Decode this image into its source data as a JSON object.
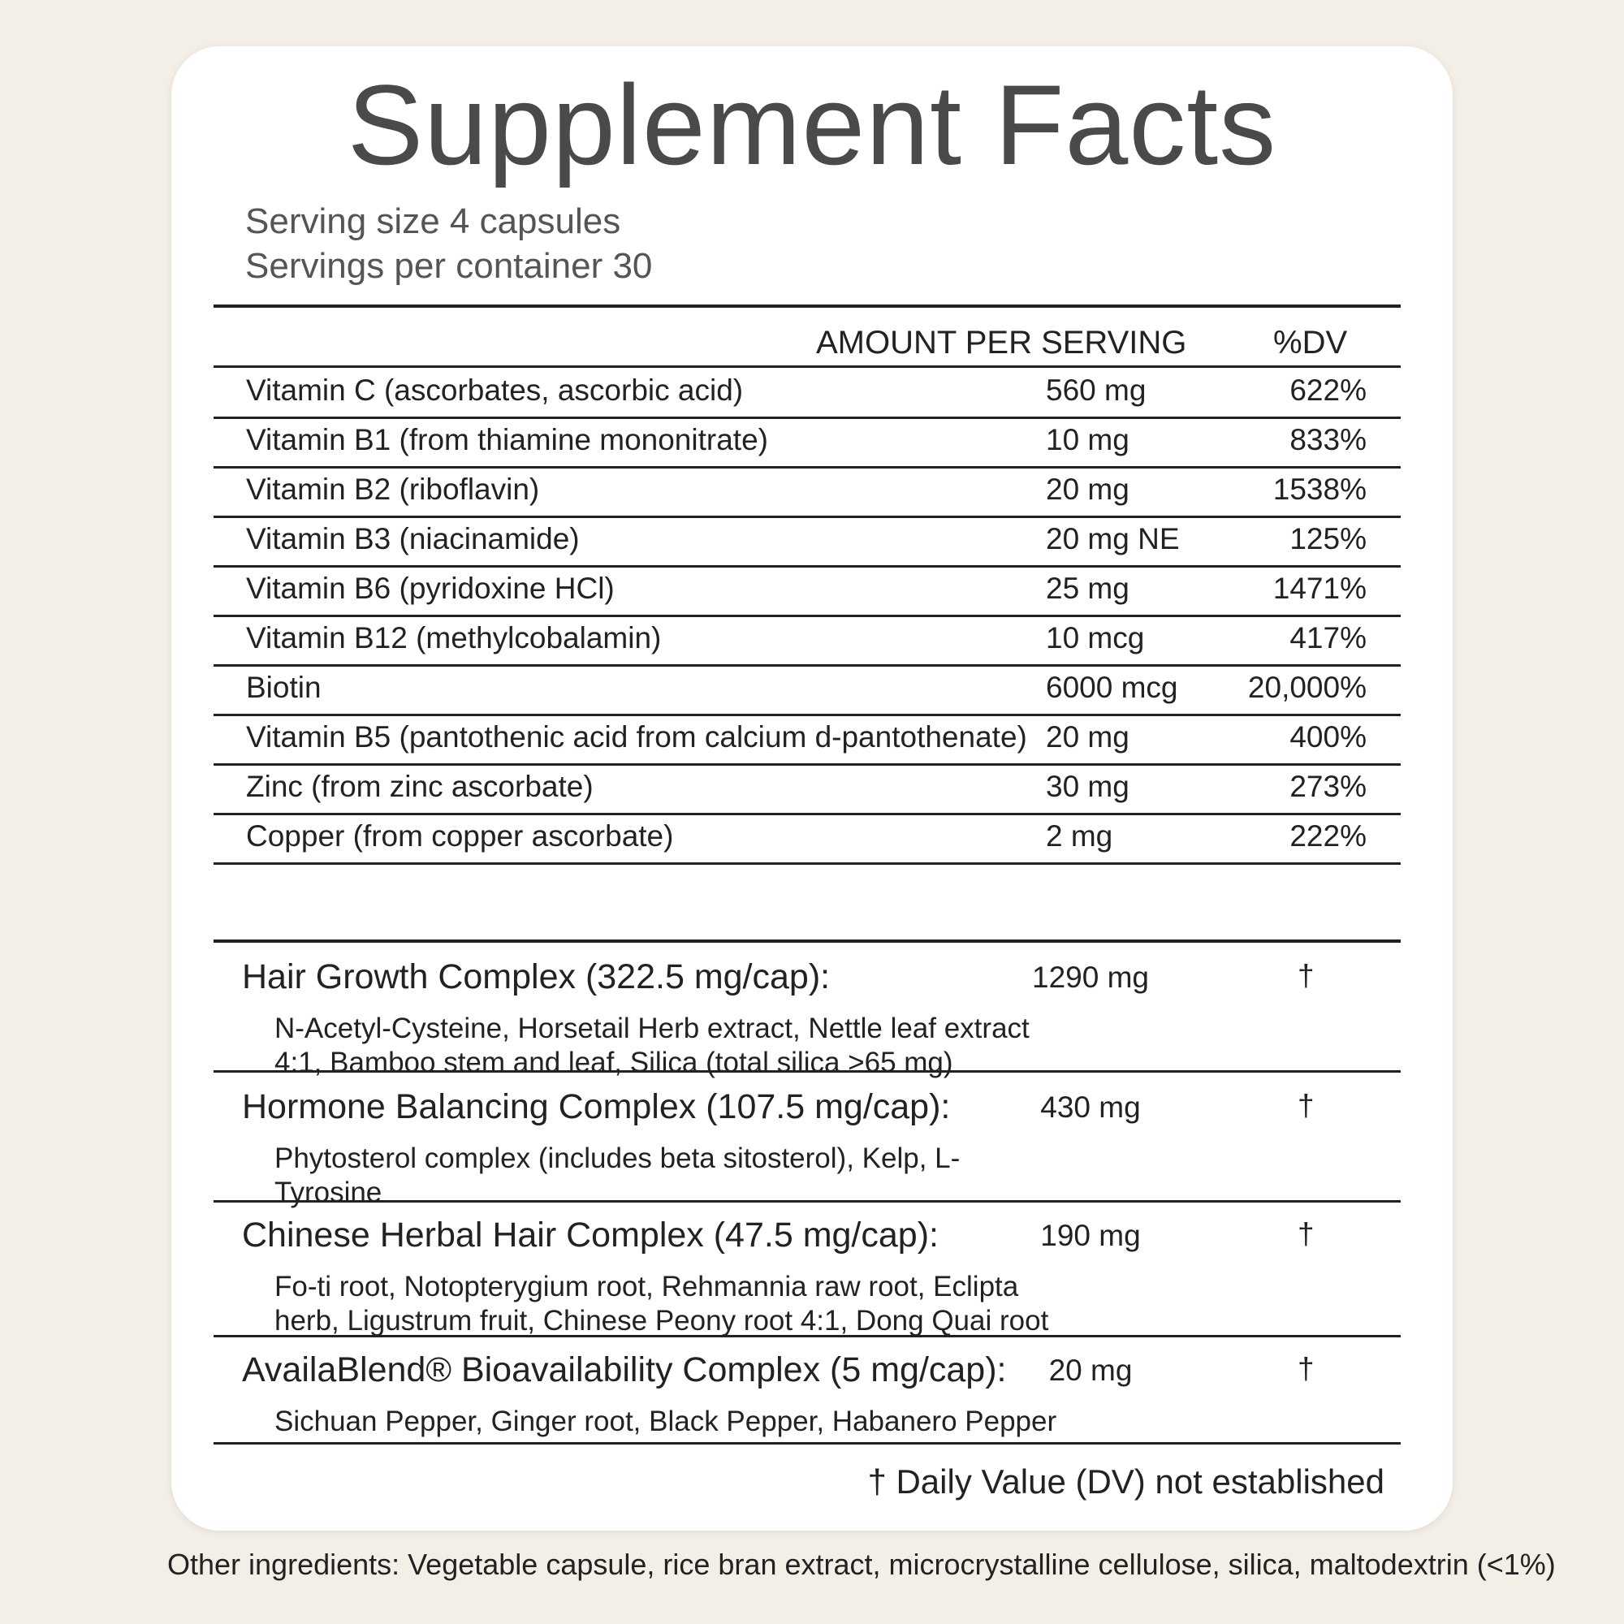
{
  "title": "Supplement Facts",
  "serving_size": "Serving size 4 capsules",
  "servings_per_container": "Servings per container 30",
  "headers": {
    "amount": "AMOUNT PER SERVING",
    "dv": "%DV"
  },
  "nutrients": [
    {
      "name": "Vitamin C (ascorbates, ascorbic acid)",
      "amount": "560 mg",
      "dv": "622%"
    },
    {
      "name": "Vitamin B1 (from thiamine mononitrate)",
      "amount": "10 mg",
      "dv": "833%"
    },
    {
      "name": "Vitamin B2 (riboflavin)",
      "amount": "20 mg",
      "dv": "1538%"
    },
    {
      "name": "Vitamin B3 (niacinamide)",
      "amount": "20 mg NE",
      "dv": "125%"
    },
    {
      "name": "Vitamin B6 (pyridoxine HCl)",
      "amount": "25 mg",
      "dv": "1471%"
    },
    {
      "name": "Vitamin B12 (methylcobalamin)",
      "amount": "10 mcg",
      "dv": "417%"
    },
    {
      "name": "Biotin",
      "amount": "6000 mcg",
      "dv": "20,000%"
    },
    {
      "name": "Vitamin B5 (pantothenic acid from calcium d-pantothenate)",
      "amount": "20 mg",
      "dv": "400%"
    },
    {
      "name": "Zinc (from zinc ascorbate)",
      "amount": "30 mg",
      "dv": "273%"
    },
    {
      "name": "Copper (from copper ascorbate)",
      "amount": "2 mg",
      "dv": "222%"
    }
  ],
  "blends": [
    {
      "name": "Hair Growth Complex (322.5 mg/cap):",
      "amount": "1290 mg",
      "dv": "†",
      "ingredients": "N-Acetyl-Cysteine, Horsetail Herb extract, Nettle leaf extract 4:1, Bamboo stem and leaf, Silica (total silica >65 mg)"
    },
    {
      "name": "Hormone Balancing Complex (107.5 mg/cap):",
      "amount": "430 mg",
      "dv": "†",
      "ingredients": "Phytosterol complex (includes beta sitosterol), Kelp, L-Tyrosine"
    },
    {
      "name": "Chinese Herbal Hair Complex (47.5 mg/cap):",
      "amount": "190 mg",
      "dv": "†",
      "ingredients": "Fo-ti root, Notopterygium root, Rehmannia raw root, Eclipta herb, Ligustrum fruit, Chinese Peony root 4:1, Dong Quai root"
    },
    {
      "name": "AvailaBlend® Bioavailability Complex (5 mg/cap):",
      "amount": "20 mg",
      "dv": "†",
      "ingredients": "Sichuan Pepper, Ginger root, Black Pepper, Habanero Pepper"
    }
  ],
  "footnote": "† Daily Value (DV) not established",
  "other_ingredients": "Other ingredients:  Vegetable capsule, rice bran extract, microcrystalline cellulose, silica, maltodextrin (<1%)"
}
